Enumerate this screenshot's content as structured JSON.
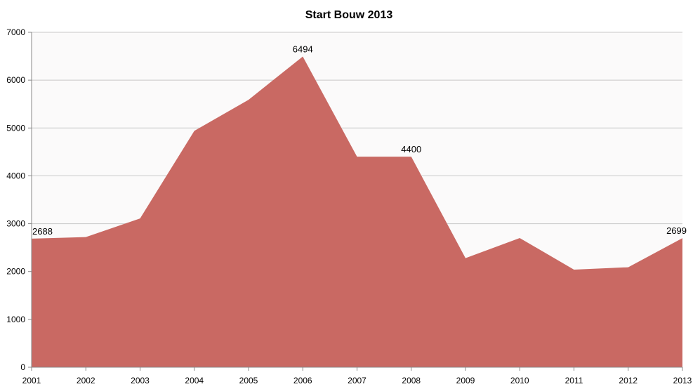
{
  "chart_data": {
    "type": "area",
    "title": "Start Bouw 2013",
    "xlabel": "",
    "ylabel": "",
    "categories": [
      "2001",
      "2002",
      "2003",
      "2004",
      "2005",
      "2006",
      "2007",
      "2008",
      "2009",
      "2010",
      "2011",
      "2012",
      "2013"
    ],
    "series": [
      {
        "values": [
          2688,
          2720,
          3110,
          4940,
          5590,
          6494,
          4400,
          4400,
          2280,
          2700,
          2040,
          2090,
          2699
        ],
        "color": "#c96963"
      }
    ],
    "data_labels": [
      {
        "index": 0,
        "text": "2688"
      },
      {
        "index": 5,
        "text": "6494"
      },
      {
        "index": 7,
        "text": "4400"
      },
      {
        "index": 12,
        "text": "2699"
      }
    ],
    "ylim": [
      0,
      7000
    ],
    "yticks": [
      "0",
      "1000",
      "2000",
      "3000",
      "4000",
      "5000",
      "6000",
      "7000"
    ],
    "grid": true,
    "plot_background": "#fbfafa",
    "gridline_color": "#c8c8c8"
  }
}
